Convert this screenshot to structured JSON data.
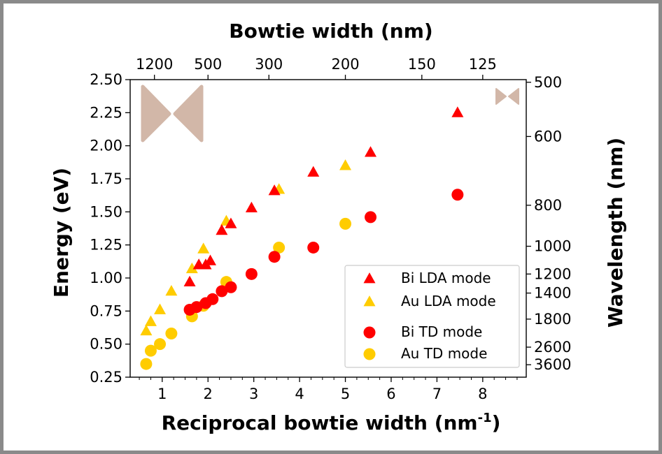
{
  "chart_data": {
    "type": "scatter",
    "title": "",
    "xlabel": "Reciprocal bowtie width (nm",
    "xlabel_sup": "-1",
    "xlabel_suffix": ")",
    "ylabel": "Energy (eV)",
    "top_axis_label": "Bowtie width (nm)",
    "right_axis_label": "Wavelength (nm)",
    "xlim": [
      0.3,
      8.95
    ],
    "ylim": [
      0.25,
      2.5
    ],
    "x_ticks": [
      1,
      2,
      3,
      4,
      5,
      6,
      7,
      8
    ],
    "y_ticks": [
      "0.25",
      "0.50",
      "0.75",
      "1.00",
      "1.25",
      "1.50",
      "1.75",
      "2.00",
      "2.25",
      "2.50"
    ],
    "top_ticks": [
      {
        "label": "1200",
        "x": 0.83
      },
      {
        "label": "500",
        "x": 2.0
      },
      {
        "label": "300",
        "x": 3.33
      },
      {
        "label": "200",
        "x": 5.0
      },
      {
        "label": "150",
        "x": 6.67
      },
      {
        "label": "125",
        "x": 8.0
      }
    ],
    "right_ticks": [
      {
        "label": "500",
        "energy": 2.48
      },
      {
        "label": "600",
        "energy": 2.07
      },
      {
        "label": "800",
        "energy": 1.55
      },
      {
        "label": "1000",
        "energy": 1.24
      },
      {
        "label": "1200",
        "energy": 1.03
      },
      {
        "label": "1400",
        "energy": 0.886
      },
      {
        "label": "1800",
        "energy": 0.689
      },
      {
        "label": "2600",
        "energy": 0.477
      },
      {
        "label": "3600",
        "energy": 0.344
      }
    ],
    "series": [
      {
        "name": "Bi LDA mode",
        "marker": "triangle",
        "color": "#ff0000",
        "points": [
          [
            1.6,
            0.97
          ],
          [
            1.8,
            1.1
          ],
          [
            1.95,
            1.1
          ],
          [
            2.05,
            1.13
          ],
          [
            2.3,
            1.36
          ],
          [
            2.5,
            1.41
          ],
          [
            2.95,
            1.53
          ],
          [
            3.45,
            1.66
          ],
          [
            4.3,
            1.8
          ],
          [
            5.55,
            1.95
          ],
          [
            7.45,
            2.25
          ]
        ]
      },
      {
        "name": "Au LDA mode",
        "marker": "triangle",
        "color": "#ffcc00",
        "points": [
          [
            0.65,
            0.6
          ],
          [
            0.75,
            0.67
          ],
          [
            0.95,
            0.76
          ],
          [
            1.2,
            0.9
          ],
          [
            1.65,
            1.07
          ],
          [
            1.9,
            1.22
          ],
          [
            2.4,
            1.43
          ],
          [
            3.55,
            1.67
          ],
          [
            5.0,
            1.85
          ]
        ]
      },
      {
        "name": "Bi TD mode",
        "marker": "circle",
        "color": "#ff0000",
        "points": [
          [
            1.6,
            0.76
          ],
          [
            1.75,
            0.78
          ],
          [
            1.95,
            0.81
          ],
          [
            2.1,
            0.84
          ],
          [
            2.3,
            0.9
          ],
          [
            2.5,
            0.93
          ],
          [
            2.95,
            1.03
          ],
          [
            3.45,
            1.16
          ],
          [
            4.3,
            1.23
          ],
          [
            5.55,
            1.46
          ],
          [
            7.45,
            1.63
          ]
        ]
      },
      {
        "name": "Au TD mode",
        "marker": "circle",
        "color": "#ffcc00",
        "points": [
          [
            0.65,
            0.35
          ],
          [
            0.75,
            0.45
          ],
          [
            0.95,
            0.5
          ],
          [
            1.2,
            0.58
          ],
          [
            1.65,
            0.71
          ],
          [
            1.9,
            0.79
          ],
          [
            2.4,
            0.97
          ],
          [
            3.55,
            1.23
          ],
          [
            5.0,
            1.41
          ]
        ]
      }
    ],
    "legend": {
      "position": "lower-right",
      "entries": [
        "Bi LDA mode",
        "Au LDA mode",
        "Bi TD mode",
        "Au TD mode"
      ]
    },
    "insets": [
      {
        "name": "large-bowtie",
        "color": "#d2b7a8"
      },
      {
        "name": "small-bowtie",
        "color": "#d2b7a8"
      }
    ]
  }
}
